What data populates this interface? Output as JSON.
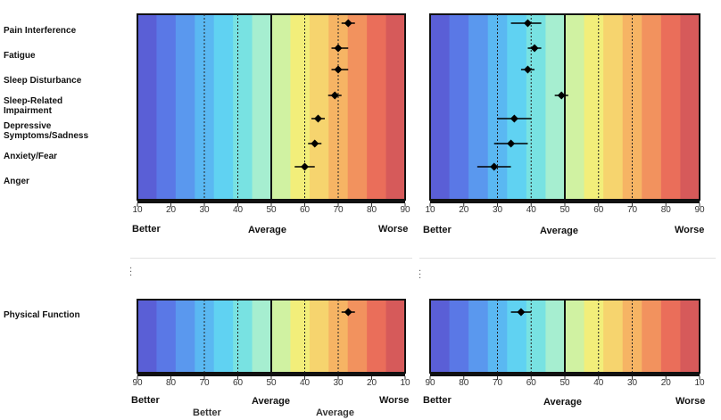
{
  "colors": {
    "gradient": [
      "#5a5fd6",
      "#5a78e6",
      "#5a98ee",
      "#5ab8f2",
      "#60d2f2",
      "#78e2e2",
      "#a6eed0",
      "#d0f2a2",
      "#f2ee7a",
      "#f6d46e",
      "#f6b464",
      "#f2925e",
      "#ea6e5a",
      "#d65a5a"
    ],
    "frame": "#111111",
    "marker": "#000000"
  },
  "top_row_labels": [
    "Pain Interference",
    "Fatigue",
    "Sleep Disturbance",
    "Sleep-Related Impairment",
    "Depressive Symptoms/Sadness",
    "Anxiety/Fear",
    "Anger"
  ],
  "bottom_row_labels": [
    "Physical Function"
  ],
  "axis_words": {
    "left": "Better",
    "middle": "Average",
    "right": "Worse"
  },
  "bottom_overlap_words": {
    "left": "Better",
    "middle": "Average"
  },
  "chart_data": [
    {
      "type": "scatter",
      "panel": "top-left",
      "xlim": [
        10,
        90
      ],
      "x_ticks": [
        "10",
        "20",
        "30",
        "40",
        "50",
        "60",
        "70",
        "80",
        "90"
      ],
      "ref_lines": {
        "solid": [
          50
        ],
        "dashed": [
          30,
          40,
          60,
          70
        ]
      },
      "categories": [
        "Pain Interference",
        "Fatigue",
        "Sleep Disturbance",
        "Sleep-Related Impairment",
        "Depressive Symptoms/Sadness",
        "Anxiety/Fear",
        "Anger"
      ],
      "points": [
        {
          "value": 73,
          "low": 71,
          "high": 75
        },
        {
          "value": 70,
          "low": 68,
          "high": 73
        },
        {
          "value": 70,
          "low": 68,
          "high": 73
        },
        {
          "value": 69,
          "low": 67,
          "high": 71
        },
        {
          "value": 64,
          "low": 62,
          "high": 66
        },
        {
          "value": 63,
          "low": 61,
          "high": 65
        },
        {
          "value": 60,
          "low": 57,
          "high": 63
        }
      ]
    },
    {
      "type": "scatter",
      "panel": "top-right",
      "xlim": [
        10,
        90
      ],
      "x_ticks": [
        "10",
        "20",
        "30",
        "40",
        "50",
        "60",
        "70",
        "80",
        "90"
      ],
      "ref_lines": {
        "solid": [
          50
        ],
        "dashed": [
          30,
          40,
          60,
          70
        ]
      },
      "categories": [
        "Pain Interference",
        "Fatigue",
        "Sleep Disturbance",
        "Sleep-Related Impairment",
        "Depressive Symptoms/Sadness",
        "Anxiety/Fear",
        "Anger"
      ],
      "points": [
        {
          "value": 39,
          "low": 34,
          "high": 43
        },
        {
          "value": 41,
          "low": 39,
          "high": 43
        },
        {
          "value": 39,
          "low": 37,
          "high": 41
        },
        {
          "value": 49,
          "low": 47,
          "high": 51
        },
        {
          "value": 35,
          "low": 30,
          "high": 40
        },
        {
          "value": 34,
          "low": 29,
          "high": 39
        },
        {
          "value": 29,
          "low": 24,
          "high": 34
        }
      ]
    },
    {
      "type": "scatter",
      "panel": "bottom-left",
      "xlim": [
        90,
        10
      ],
      "x_ticks": [
        "90",
        "80",
        "70",
        "60",
        "50",
        "40",
        "30",
        "20",
        "10"
      ],
      "ref_lines": {
        "solid": [
          50
        ],
        "dashed": [
          70,
          60,
          40,
          30
        ]
      },
      "categories": [
        "Physical Function"
      ],
      "points": [
        {
          "value": 27,
          "low": 25,
          "high": 29
        }
      ]
    },
    {
      "type": "scatter",
      "panel": "bottom-right",
      "xlim": [
        90,
        10
      ],
      "x_ticks": [
        "90",
        "80",
        "70",
        "60",
        "50",
        "40",
        "30",
        "20",
        "10"
      ],
      "ref_lines": {
        "solid": [
          50
        ],
        "dashed": [
          70,
          60,
          40,
          30
        ]
      },
      "categories": [
        "Physical Function"
      ],
      "points": [
        {
          "value": 63,
          "low": 60,
          "high": 66
        }
      ]
    }
  ]
}
